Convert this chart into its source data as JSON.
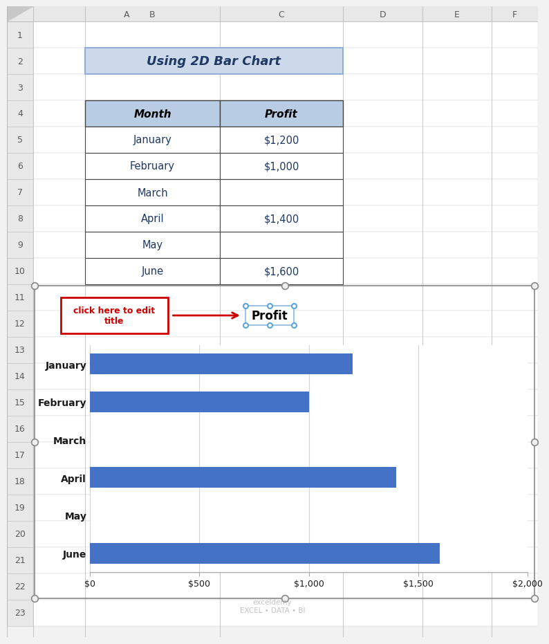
{
  "title": "Using 2D Bar Chart",
  "title_bg": "#ccd9ea",
  "title_border": "#8fafd4",
  "table_headers": [
    "Month",
    "Profit"
  ],
  "table_header_bg": "#b8cce4",
  "table_rows": [
    [
      "January",
      "$1,200"
    ],
    [
      "February",
      "$1,000"
    ],
    [
      "March",
      ""
    ],
    [
      "April",
      "$1,400"
    ],
    [
      "May",
      ""
    ],
    [
      "June",
      "$1,600"
    ]
  ],
  "chart_months": [
    "June",
    "May",
    "April",
    "March",
    "February",
    "January"
  ],
  "chart_values": [
    1600,
    0,
    1400,
    0,
    1000,
    1200
  ],
  "bar_color": "#4472c4",
  "chart_title": "Profit",
  "xlim": [
    0,
    2000
  ],
  "xticks": [
    0,
    500,
    1000,
    1500,
    2000
  ],
  "xtick_labels": [
    "$0",
    "$500",
    "$1,000",
    "$1,500",
    "$2,000"
  ],
  "excel_bg": "#f2f2f2",
  "cell_bg": "#ffffff",
  "header_bg": "#e8e8e8",
  "grid_line_color": "#d4d4d4",
  "annotation_text": "click here to edit\ntitle",
  "annotation_color": "#cc0000",
  "row_num_color": "#595959",
  "col_header_color": "#595959",
  "table_text_color": "#1f3864",
  "month_text_color": "#1f3864",
  "profit_text_color": "#1f3864"
}
